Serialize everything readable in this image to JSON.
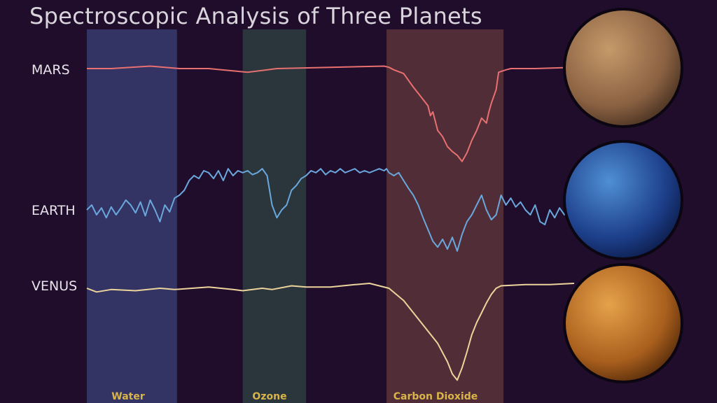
{
  "chart_data": {
    "type": "line",
    "title": "Spectroscopic Analysis of Three Planets",
    "grid": false,
    "legend": "none",
    "x_domain": [
      0,
      100
    ],
    "absorption_bands": [
      {
        "name": "Water",
        "x_start": 0,
        "x_end": 18.5,
        "color": "#35376a"
      },
      {
        "name": "Ozone",
        "x_start": 32.0,
        "x_end": 45.0,
        "color": "#2b3a3e"
      },
      {
        "name": "Carbon Dioxide",
        "x_start": 61.5,
        "x_end": 85.5,
        "color": "#553139"
      }
    ],
    "series": [
      {
        "name": "MARS",
        "color": "#e87070",
        "points": [
          [
            0,
            100
          ],
          [
            5,
            100
          ],
          [
            13,
            102
          ],
          [
            19,
            100
          ],
          [
            25,
            100
          ],
          [
            33,
            97
          ],
          [
            39,
            100
          ],
          [
            50,
            101
          ],
          [
            61,
            102
          ],
          [
            62,
            101
          ],
          [
            63,
            99
          ],
          [
            65,
            96
          ],
          [
            67,
            85
          ],
          [
            68,
            80
          ],
          [
            70,
            70
          ],
          [
            70.5,
            62
          ],
          [
            71,
            65
          ],
          [
            72,
            50
          ],
          [
            73,
            45
          ],
          [
            74,
            37
          ],
          [
            75,
            33
          ],
          [
            76,
            30
          ],
          [
            77,
            25
          ],
          [
            78,
            32
          ],
          [
            79,
            42
          ],
          [
            80,
            50
          ],
          [
            81,
            60
          ],
          [
            82,
            56
          ],
          [
            82.5,
            65
          ],
          [
            83,
            72
          ],
          [
            84,
            83
          ],
          [
            84.5,
            97
          ],
          [
            86,
            99
          ],
          [
            87,
            100
          ],
          [
            92,
            100
          ],
          [
            100,
            101
          ]
        ]
      },
      {
        "name": "EARTH",
        "color": "#6aa7dc",
        "points": [
          [
            0,
            0
          ],
          [
            1,
            5
          ],
          [
            2,
            -5
          ],
          [
            3,
            2
          ],
          [
            4,
            -8
          ],
          [
            5,
            3
          ],
          [
            6,
            -5
          ],
          [
            7,
            2
          ],
          [
            8,
            10
          ],
          [
            9,
            5
          ],
          [
            10,
            -3
          ],
          [
            11,
            8
          ],
          [
            12,
            -6
          ],
          [
            13,
            10
          ],
          [
            14,
            0
          ],
          [
            15,
            -12
          ],
          [
            16,
            5
          ],
          [
            17,
            -2
          ],
          [
            18,
            12
          ],
          [
            19,
            15
          ],
          [
            20,
            20
          ],
          [
            21,
            30
          ],
          [
            22,
            35
          ],
          [
            23,
            32
          ],
          [
            24,
            40
          ],
          [
            25,
            38
          ],
          [
            26,
            32
          ],
          [
            27,
            40
          ],
          [
            28,
            30
          ],
          [
            29,
            42
          ],
          [
            30,
            35
          ],
          [
            31,
            40
          ],
          [
            32,
            38
          ],
          [
            33,
            40
          ],
          [
            34,
            36
          ],
          [
            35,
            38
          ],
          [
            36,
            42
          ],
          [
            37,
            35
          ],
          [
            38,
            5
          ],
          [
            39,
            -8
          ],
          [
            40,
            0
          ],
          [
            41,
            5
          ],
          [
            42,
            20
          ],
          [
            43,
            25
          ],
          [
            44,
            32
          ],
          [
            45,
            35
          ],
          [
            46,
            40
          ],
          [
            47,
            38
          ],
          [
            48,
            42
          ],
          [
            49,
            36
          ],
          [
            50,
            40
          ],
          [
            51,
            38
          ],
          [
            52,
            42
          ],
          [
            53,
            38
          ],
          [
            54,
            40
          ],
          [
            55,
            42
          ],
          [
            56,
            38
          ],
          [
            57,
            40
          ],
          [
            58,
            38
          ],
          [
            59,
            40
          ],
          [
            60,
            42
          ],
          [
            61,
            40
          ],
          [
            61.5,
            42
          ],
          [
            62,
            38
          ],
          [
            63,
            35
          ],
          [
            64,
            38
          ],
          [
            65,
            30
          ],
          [
            66,
            22
          ],
          [
            67,
            15
          ],
          [
            68,
            5
          ],
          [
            69,
            -8
          ],
          [
            70,
            -20
          ],
          [
            71,
            -32
          ],
          [
            72,
            -38
          ],
          [
            73,
            -30
          ],
          [
            74,
            -40
          ],
          [
            75,
            -28
          ],
          [
            76,
            -42
          ],
          [
            77,
            -25
          ],
          [
            78,
            -12
          ],
          [
            79,
            -5
          ],
          [
            80,
            5
          ],
          [
            81,
            15
          ],
          [
            82,
            0
          ],
          [
            83,
            -10
          ],
          [
            84,
            -5
          ],
          [
            85,
            15
          ],
          [
            86,
            5
          ],
          [
            87,
            12
          ],
          [
            88,
            3
          ],
          [
            89,
            8
          ],
          [
            90,
            0
          ],
          [
            91,
            -5
          ],
          [
            92,
            5
          ],
          [
            93,
            -12
          ],
          [
            94,
            -15
          ],
          [
            95,
            0
          ],
          [
            96,
            -8
          ],
          [
            97,
            2
          ],
          [
            98,
            -5
          ],
          [
            99,
            0
          ],
          [
            100,
            -6
          ]
        ]
      },
      {
        "name": "VENUS",
        "color": "#ecd49c",
        "points": [
          [
            0,
            100
          ],
          [
            2,
            97
          ],
          [
            5,
            99
          ],
          [
            10,
            98
          ],
          [
            15,
            100
          ],
          [
            18,
            99
          ],
          [
            25,
            101
          ],
          [
            30,
            99
          ],
          [
            32,
            98
          ],
          [
            36,
            100
          ],
          [
            38,
            99
          ],
          [
            42,
            102
          ],
          [
            45,
            101
          ],
          [
            50,
            101
          ],
          [
            55,
            103
          ],
          [
            58,
            104
          ],
          [
            62,
            100
          ],
          [
            65,
            90
          ],
          [
            68,
            75
          ],
          [
            70,
            65
          ],
          [
            72,
            55
          ],
          [
            74,
            40
          ],
          [
            75,
            30
          ],
          [
            76,
            25
          ],
          [
            77,
            35
          ],
          [
            78,
            48
          ],
          [
            79,
            62
          ],
          [
            80,
            72
          ],
          [
            81,
            80
          ],
          [
            82,
            88
          ],
          [
            83,
            95
          ],
          [
            84,
            100
          ],
          [
            85,
            102
          ],
          [
            90,
            103
          ],
          [
            95,
            103
          ],
          [
            100,
            104
          ]
        ]
      }
    ]
  },
  "labels": {
    "mars": "MARS",
    "earth": "EARTH",
    "venus": "VENUS"
  },
  "images": [
    {
      "name": "Mars",
      "colors": [
        "#c59a6a",
        "#8a6142",
        "#3e2a1c"
      ]
    },
    {
      "name": "Earth",
      "colors": [
        "#4f8fd3",
        "#1d3f8a",
        "#0a1842"
      ]
    },
    {
      "name": "Venus",
      "colors": [
        "#e6a24a",
        "#a95f1d",
        "#4a2408"
      ]
    }
  ]
}
